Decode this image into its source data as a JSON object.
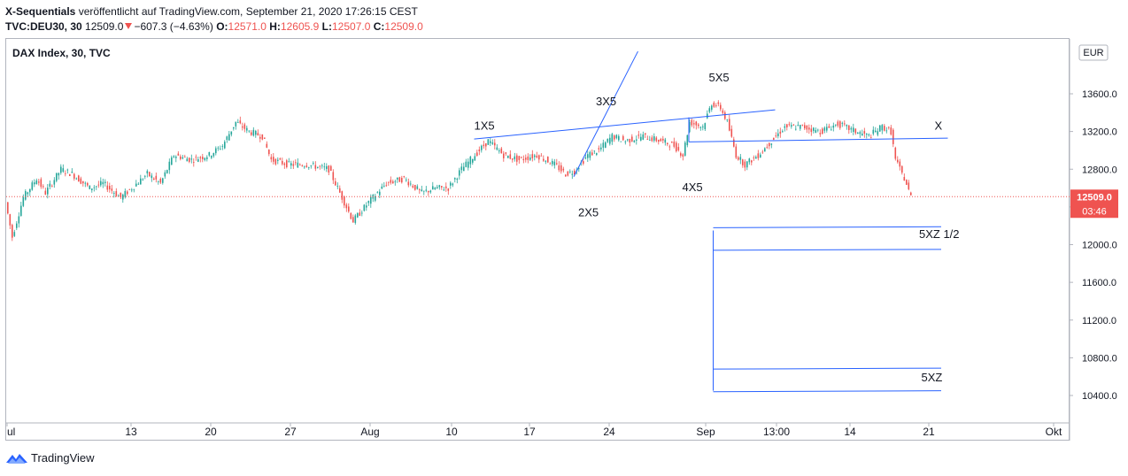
{
  "header": {
    "author": "X-Sequentials",
    "published": "veröffentlicht auf TradingView.com, September 21, 2020 17:26:15 CEST",
    "symbol": "TVC:DEU30, 30",
    "last": "12509.0",
    "change": "−607.3 (−4.63%)",
    "o_label": "O:",
    "o_value": "12571.0",
    "h_label": "H:",
    "h_value": "12605.9",
    "l_label": "L:",
    "l_value": "12507.0",
    "c_label": "C:",
    "c_value": "12509.0"
  },
  "legend": "DAX Index, 30, TVC",
  "currency": "EUR",
  "footer": {
    "brand": "TradingView"
  },
  "chart_data": {
    "type": "candlestick",
    "ylim": [
      10150,
      13950
    ],
    "y_ticks": [
      "13600.0",
      "13200.0",
      "12800.0",
      "12400.0",
      "12000.0",
      "11600.0",
      "11200.0",
      "10800.0",
      "10400.0"
    ],
    "y_tick_values": [
      13600,
      13200,
      12800,
      12400,
      12000,
      11600,
      11200,
      10800,
      10400
    ],
    "x_ticks": [
      "ul",
      "13",
      "20",
      "27",
      "Aug",
      "10",
      "17",
      "24",
      "Sep",
      "13:00",
      "14",
      "21",
      "Okt"
    ],
    "last_price": "12509.0",
    "countdown": "03:46",
    "colors": {
      "up": "#26a69a",
      "down": "#ef5350",
      "line": "#2962ff",
      "last": "#ef5350"
    },
    "price_path": [
      [
        0,
        12450
      ],
      [
        3,
        12080
      ],
      [
        8,
        12500
      ],
      [
        14,
        12700
      ],
      [
        18,
        12550
      ],
      [
        25,
        12800
      ],
      [
        30,
        12750
      ],
      [
        38,
        12600
      ],
      [
        44,
        12650
      ],
      [
        52,
        12500
      ],
      [
        57,
        12600
      ],
      [
        64,
        12750
      ],
      [
        70,
        12650
      ],
      [
        76,
        12950
      ],
      [
        84,
        12900
      ],
      [
        92,
        12950
      ],
      [
        98,
        13050
      ],
      [
        104,
        13300
      ],
      [
        110,
        13200
      ],
      [
        116,
        13150
      ],
      [
        120,
        12900
      ],
      [
        128,
        12850
      ],
      [
        136,
        12850
      ],
      [
        146,
        12800
      ],
      [
        151,
        12550
      ],
      [
        157,
        12250
      ],
      [
        164,
        12450
      ],
      [
        172,
        12650
      ],
      [
        180,
        12700
      ],
      [
        188,
        12550
      ],
      [
        194,
        12600
      ],
      [
        200,
        12600
      ],
      [
        206,
        12800
      ],
      [
        212,
        12950
      ],
      [
        218,
        13100
      ],
      [
        225,
        12950
      ],
      [
        232,
        12900
      ],
      [
        240,
        12950
      ],
      [
        248,
        12850
      ],
      [
        253,
        12750
      ],
      [
        257,
        12780
      ],
      [
        263,
        12950
      ],
      [
        268,
        13000
      ],
      [
        274,
        13150
      ],
      [
        280,
        13100
      ],
      [
        288,
        13150
      ],
      [
        296,
        13100
      ],
      [
        302,
        13050
      ],
      [
        306,
        12950
      ],
      [
        309,
        13300
      ],
      [
        315,
        13250
      ],
      [
        319,
        13500
      ],
      [
        323,
        13450
      ],
      [
        326,
        13300
      ],
      [
        330,
        12950
      ],
      [
        334,
        12850
      ],
      [
        340,
        12950
      ],
      [
        346,
        13100
      ],
      [
        352,
        13250
      ],
      [
        360,
        13250
      ],
      [
        368,
        13200
      ],
      [
        376,
        13280
      ],
      [
        384,
        13200
      ],
      [
        390,
        13150
      ],
      [
        396,
        13250
      ],
      [
        400,
        13200
      ],
      [
        402,
        12900
      ],
      [
        406,
        12700
      ],
      [
        409,
        12509
      ]
    ],
    "annotations": [
      {
        "text": "1X5",
        "x": 211,
        "y": 13220
      },
      {
        "text": "2X5",
        "x": 258,
        "y": 12300
      },
      {
        "text": "3X5",
        "x": 266,
        "y": 13480
      },
      {
        "text": "4X5",
        "x": 305,
        "y": 12570
      },
      {
        "text": "5X5",
        "x": 317,
        "y": 13730
      },
      {
        "text": "X",
        "x": 419,
        "y": 13220
      },
      {
        "text": "5XZ 1/2",
        "x": 412,
        "y": 12070
      },
      {
        "text": "5XZ",
        "x": 413,
        "y": 10550
      }
    ],
    "lines": [
      {
        "x1": 211,
        "y1": 13120,
        "x2": 347,
        "y2": 13430
      },
      {
        "x1": 256,
        "y1": 12720,
        "x2": 285,
        "y2": 14050
      },
      {
        "x1": 308,
        "y1": 13090,
        "x2": 425,
        "y2": 13130
      },
      {
        "x1": 308,
        "y1": 13090,
        "x2": 308,
        "y2": 13350
      },
      {
        "x1": 319,
        "y1": 12150,
        "x2": 319,
        "y2": 10450
      },
      {
        "x1": 319,
        "y1": 12180,
        "x2": 422,
        "y2": 12190
      },
      {
        "x1": 319,
        "y1": 11940,
        "x2": 422,
        "y2": 11950
      },
      {
        "x1": 319,
        "y1": 10680,
        "x2": 422,
        "y2": 10690
      },
      {
        "x1": 319,
        "y1": 10440,
        "x2": 422,
        "y2": 10450
      }
    ]
  }
}
